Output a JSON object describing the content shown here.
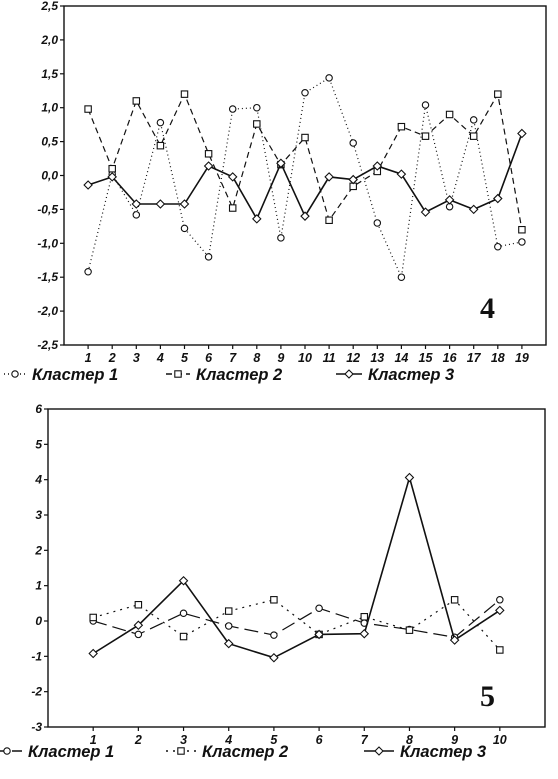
{
  "chart_data": [
    {
      "type": "line",
      "panel_label": "4",
      "categories": [
        "1",
        "2",
        "3",
        "4",
        "5",
        "6",
        "7",
        "8",
        "9",
        "10",
        "11",
        "12",
        "13",
        "14",
        "15",
        "16",
        "17",
        "18",
        "19"
      ],
      "ylim": [
        -2.5,
        2.5
      ],
      "y_ticks": [
        "2,5",
        "2,0",
        "1,5",
        "1,0",
        "0,5",
        "0,0",
        "-0,5",
        "-1,0",
        "-1,5",
        "-2,0",
        "-2,5"
      ],
      "grid": false,
      "legend_position": "bottom",
      "series": [
        {
          "name": "Кластер 1",
          "marker": "circle",
          "dash": "1,3",
          "values": [
            -1.42,
            0.02,
            -0.58,
            0.78,
            -0.78,
            -1.2,
            0.98,
            1.0,
            -0.92,
            1.22,
            1.44,
            0.48,
            -0.7,
            -1.5,
            1.04,
            -0.46,
            0.82,
            -1.05,
            -0.98
          ]
        },
        {
          "name": "Кластер 2",
          "marker": "square",
          "dash": "6,4",
          "values": [
            0.98,
            0.1,
            1.1,
            0.44,
            1.2,
            0.32,
            -0.48,
            0.76,
            0.16,
            0.56,
            -0.66,
            -0.16,
            0.06,
            0.72,
            0.58,
            0.9,
            0.58,
            1.2,
            -0.8
          ]
        },
        {
          "name": "Кластер 3",
          "marker": "diamond",
          "dash": "",
          "values": [
            -0.14,
            -0.02,
            -0.42,
            -0.42,
            -0.42,
            0.14,
            -0.02,
            -0.64,
            0.18,
            -0.6,
            -0.02,
            -0.06,
            0.14,
            0.02,
            -0.54,
            -0.36,
            -0.5,
            -0.34,
            0.62
          ]
        }
      ]
    },
    {
      "type": "line",
      "panel_label": "5",
      "categories": [
        "1",
        "2",
        "3",
        "4",
        "5",
        "6",
        "7",
        "8",
        "9",
        "10"
      ],
      "ylim": [
        -3,
        6
      ],
      "y_ticks": [
        "6",
        "5",
        "4",
        "3",
        "2",
        "1",
        "0",
        "-1",
        "-2",
        "-3"
      ],
      "grid": false,
      "legend_position": "bottom",
      "series": [
        {
          "name": "Кластер 1",
          "marker": "circle",
          "dash": "14,6",
          "values": [
            0.0,
            -0.38,
            0.22,
            -0.14,
            -0.4,
            0.36,
            -0.06,
            -0.24,
            -0.46,
            0.6
          ]
        },
        {
          "name": "Кластер 2",
          "marker": "square",
          "dash": "2,5",
          "values": [
            0.1,
            0.46,
            -0.44,
            0.28,
            0.6,
            -0.38,
            0.12,
            -0.26,
            0.6,
            -0.82
          ]
        },
        {
          "name": "Кластер 3",
          "marker": "diamond",
          "dash": "",
          "values": [
            -0.92,
            -0.12,
            1.14,
            -0.64,
            -1.04,
            -0.38,
            -0.36,
            4.06,
            -0.54,
            0.3
          ]
        }
      ]
    }
  ]
}
